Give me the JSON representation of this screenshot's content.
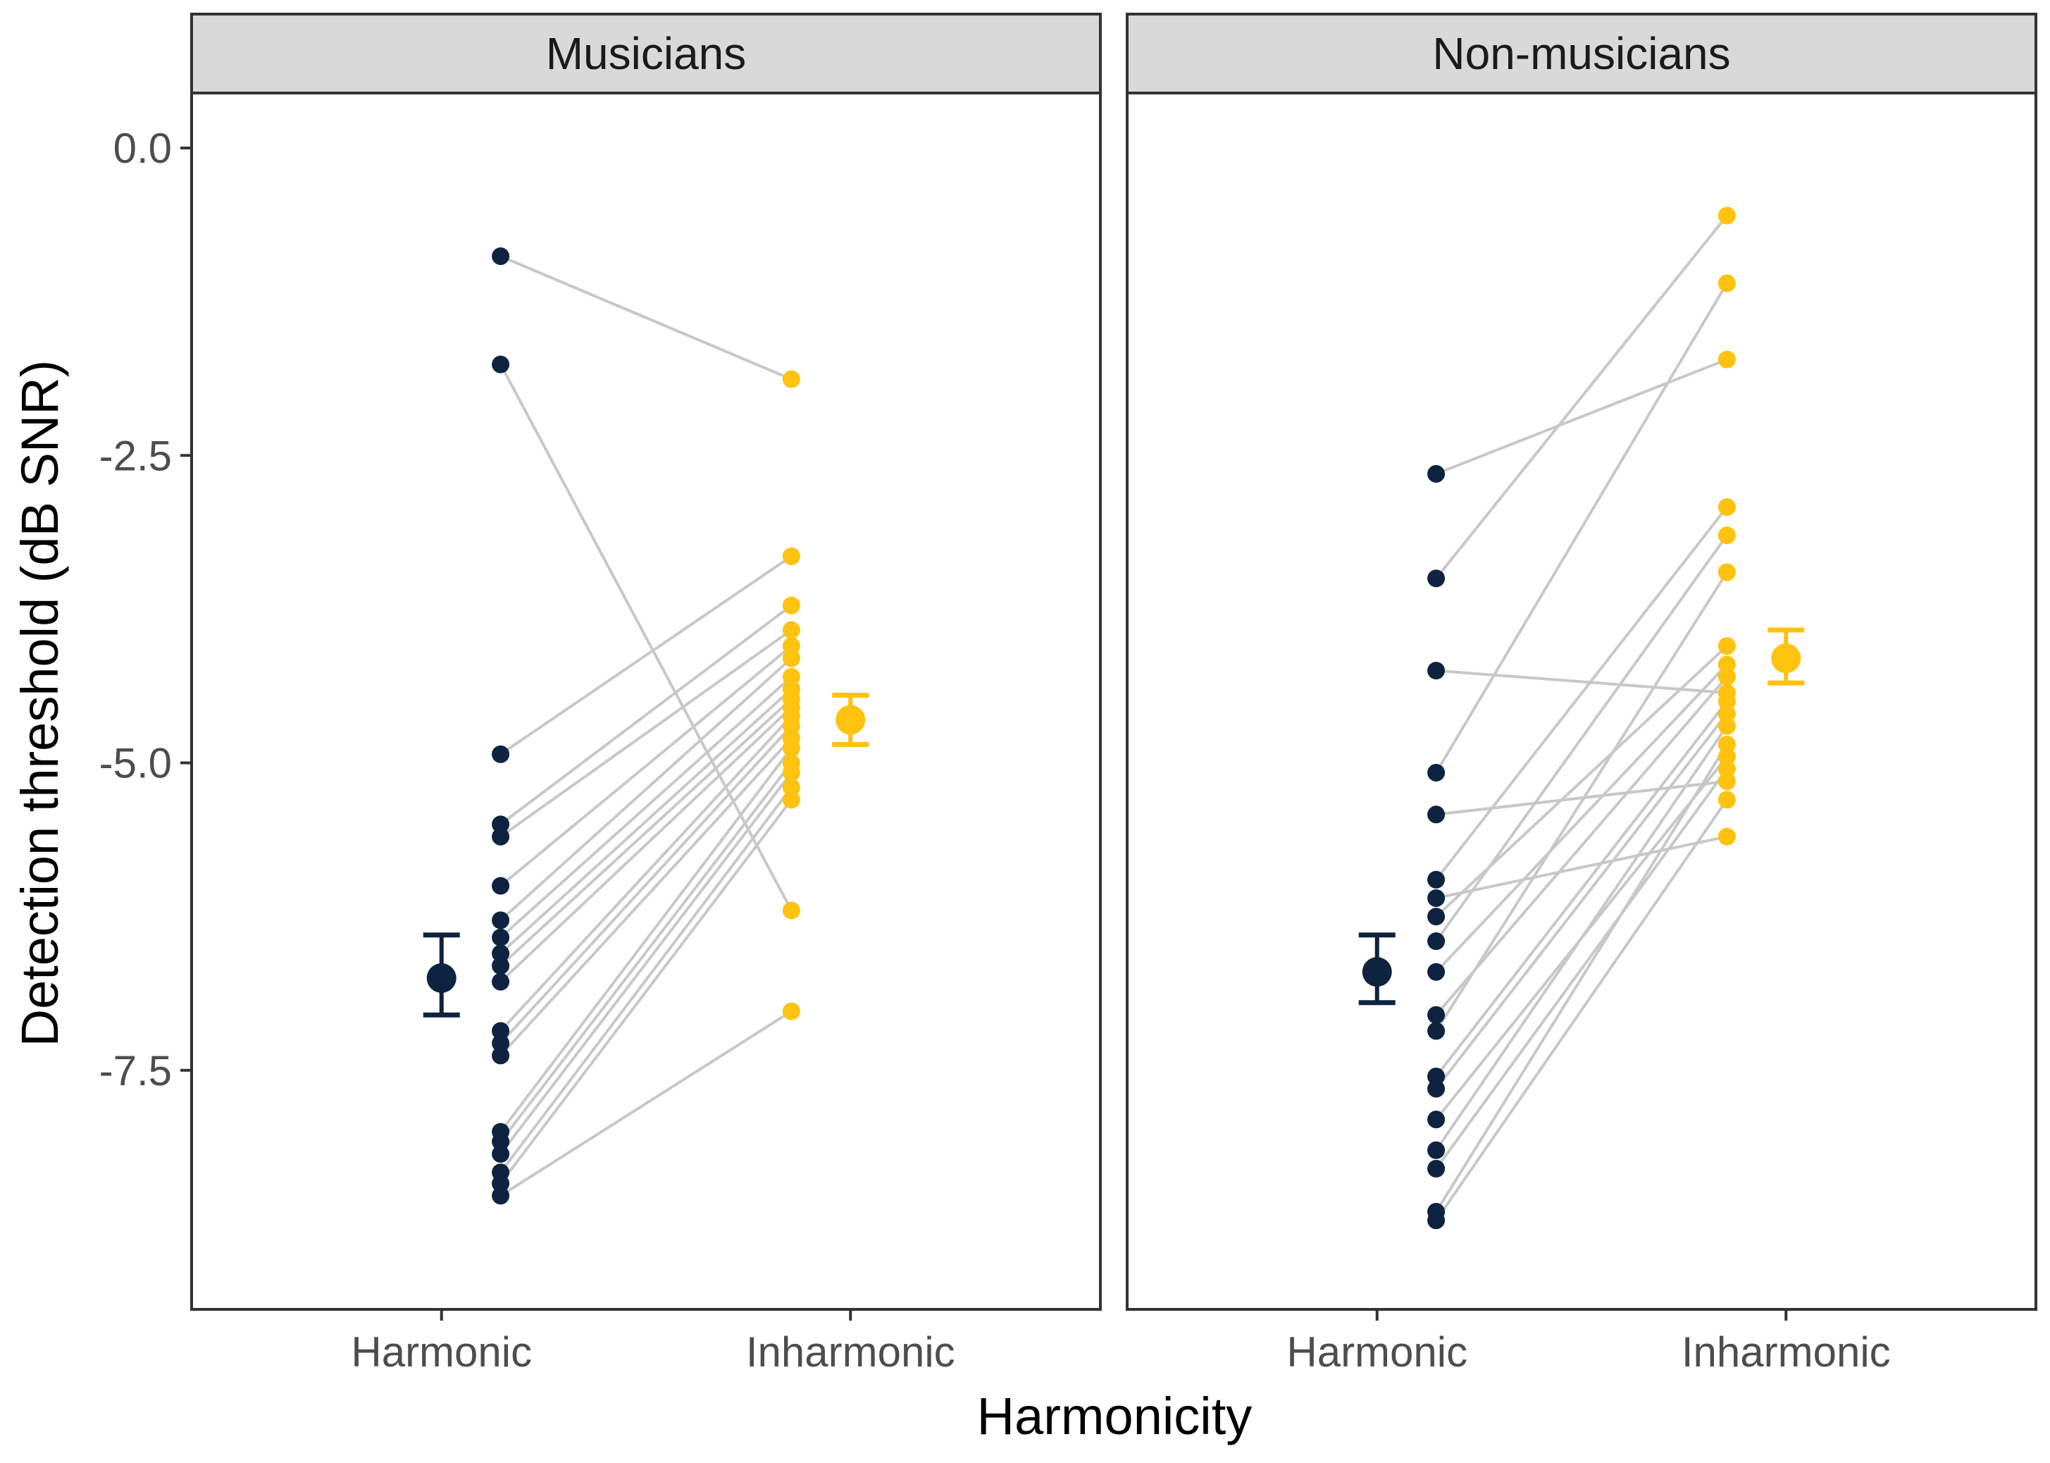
{
  "chart_data": {
    "type": "scatter",
    "subtype": "paired-points-with-mean-error-bars",
    "xlabel": "Harmonicity",
    "ylabel": "Detection threshold (dB SNR)",
    "categories": [
      "Harmonic",
      "Inharmonic"
    ],
    "ylim": [
      -9.3,
      0.7
    ],
    "yticks": [
      0,
      -2.5,
      -5,
      -7.5
    ],
    "ytick_labels": [
      "0.0",
      "-2.5",
      "-5.0",
      "-7.5"
    ],
    "grid": false,
    "colors": {
      "Harmonic": "#0d2340",
      "Inharmonic": "#ffc20e",
      "lines": "#c8c8c8",
      "strip": "#d9d9d9",
      "frame": "#333333"
    },
    "panels": [
      {
        "name": "Musicians",
        "pairs": [
          [
            -0.88,
            -1.88
          ],
          [
            -1.76,
            -6.2
          ],
          [
            -4.93,
            -3.32
          ],
          [
            -5.5,
            -3.72
          ],
          [
            -5.6,
            -3.92
          ],
          [
            -6.0,
            -4.05
          ],
          [
            -6.28,
            -4.15
          ],
          [
            -6.42,
            -4.3
          ],
          [
            -6.55,
            -4.4
          ],
          [
            -6.65,
            -4.48
          ],
          [
            -6.78,
            -4.55
          ],
          [
            -7.18,
            -4.62
          ],
          [
            -7.28,
            -4.7
          ],
          [
            -7.38,
            -4.8
          ],
          [
            -8.0,
            -4.88
          ],
          [
            -8.08,
            -5.0
          ],
          [
            -8.18,
            -5.08
          ],
          [
            -8.33,
            -5.2
          ],
          [
            -8.42,
            -5.3
          ],
          [
            -8.52,
            -7.02
          ]
        ],
        "mean": {
          "Harmonic": -6.75,
          "Inharmonic": -4.65
        },
        "errorbar": {
          "Harmonic": [
            -7.05,
            -6.4
          ],
          "Inharmonic": [
            -4.85,
            -4.45
          ]
        }
      },
      {
        "name": "Non-musicians",
        "pairs": [
          [
            -2.65,
            -1.72
          ],
          [
            -3.5,
            -0.55
          ],
          [
            -4.25,
            -4.43
          ],
          [
            -5.08,
            -1.1
          ],
          [
            -5.42,
            -5.15
          ],
          [
            -5.95,
            -2.92
          ],
          [
            -6.1,
            -5.6
          ],
          [
            -6.25,
            -4.05
          ],
          [
            -6.45,
            -3.15
          ],
          [
            -6.7,
            -4.2
          ],
          [
            -7.05,
            -4.3
          ],
          [
            -7.18,
            -3.45
          ],
          [
            -7.55,
            -4.5
          ],
          [
            -7.65,
            -4.6
          ],
          [
            -7.9,
            -4.95
          ],
          [
            -8.15,
            -4.7
          ],
          [
            -8.3,
            -5.05
          ],
          [
            -8.65,
            -4.85
          ],
          [
            -8.72,
            -5.3
          ]
        ],
        "mean": {
          "Harmonic": -6.7,
          "Inharmonic": -4.15
        },
        "errorbar": {
          "Harmonic": [
            -6.95,
            -6.4
          ],
          "Inharmonic": [
            -4.35,
            -3.92
          ]
        }
      }
    ]
  }
}
